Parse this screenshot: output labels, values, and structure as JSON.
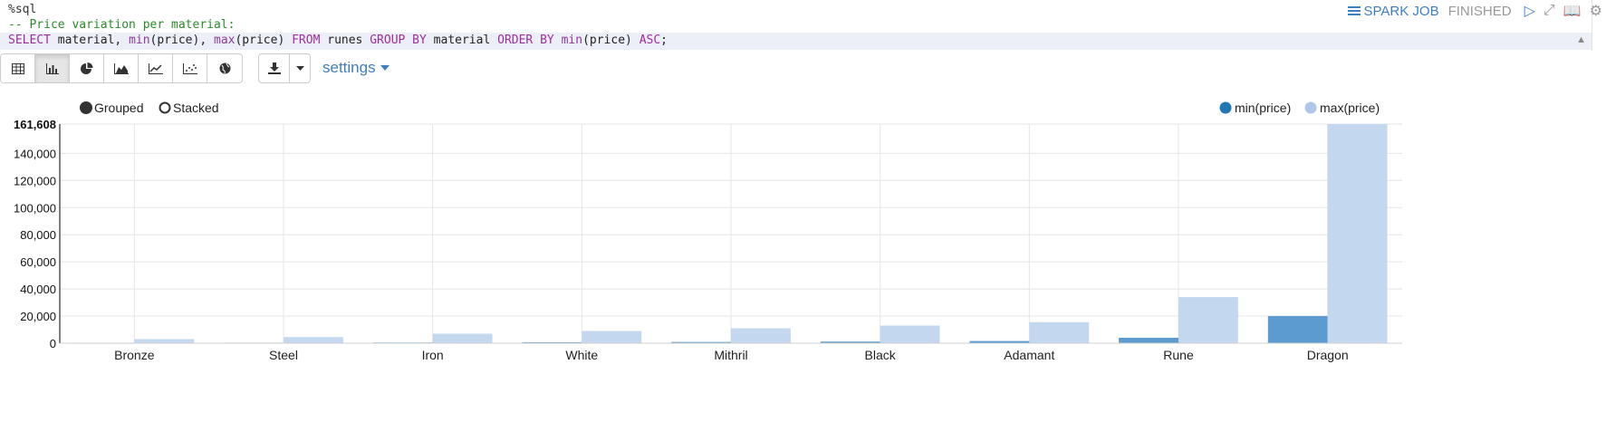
{
  "editor": {
    "line1": "%sql",
    "line2": "-- Price variation per material:",
    "line3": {
      "t1": "SELECT",
      "t2": " material, ",
      "t3": "min",
      "t4": "(price), ",
      "t5": "max",
      "t6": "(price) ",
      "t7": "FROM",
      "t8": " runes ",
      "t9": "GROUP BY",
      "t10": " material ",
      "t11": "ORDER BY",
      "t12": " ",
      "t13": "min",
      "t14": "(price) ",
      "t15": "ASC",
      "t16": ";"
    }
  },
  "status": {
    "job_label": "SPARK JOB",
    "state": "FINISHED",
    "icons": [
      "run-icon",
      "collapse-icon",
      "book-icon",
      "gear-icon"
    ]
  },
  "toolbar": {
    "view_buttons": [
      "table-icon",
      "bar-chart-icon",
      "pie-chart-icon",
      "area-chart-icon",
      "line-chart-icon",
      "scatter-chart-icon",
      "globe-icon"
    ],
    "active": "bar-chart-icon",
    "settings_label": "settings"
  },
  "controls": {
    "grouped_label": "Grouped",
    "stacked_label": "Stacked",
    "selected": "Grouped"
  },
  "chart_data": {
    "type": "bar",
    "categories": [
      "Bronze",
      "Steel",
      "Iron",
      "White",
      "Mithril",
      "Black",
      "Adamant",
      "Rune",
      "Dragon"
    ],
    "series": [
      {
        "name": "min(price)",
        "color": "#5b9bd0",
        "values": [
          300,
          400,
          500,
          700,
          900,
          1200,
          1600,
          4000,
          20000
        ]
      },
      {
        "name": "max(price)",
        "color": "#c3d7ef",
        "values": [
          3000,
          4500,
          7000,
          9000,
          11000,
          13000,
          15500,
          34000,
          161608
        ]
      }
    ],
    "y_ticks": [
      "0",
      "20,000",
      "40,000",
      "60,000",
      "80,000",
      "100,000",
      "120,000",
      "140,000",
      "161,608"
    ],
    "ylim": [
      0,
      161608
    ],
    "legend_position": "top-right",
    "grid": true
  }
}
